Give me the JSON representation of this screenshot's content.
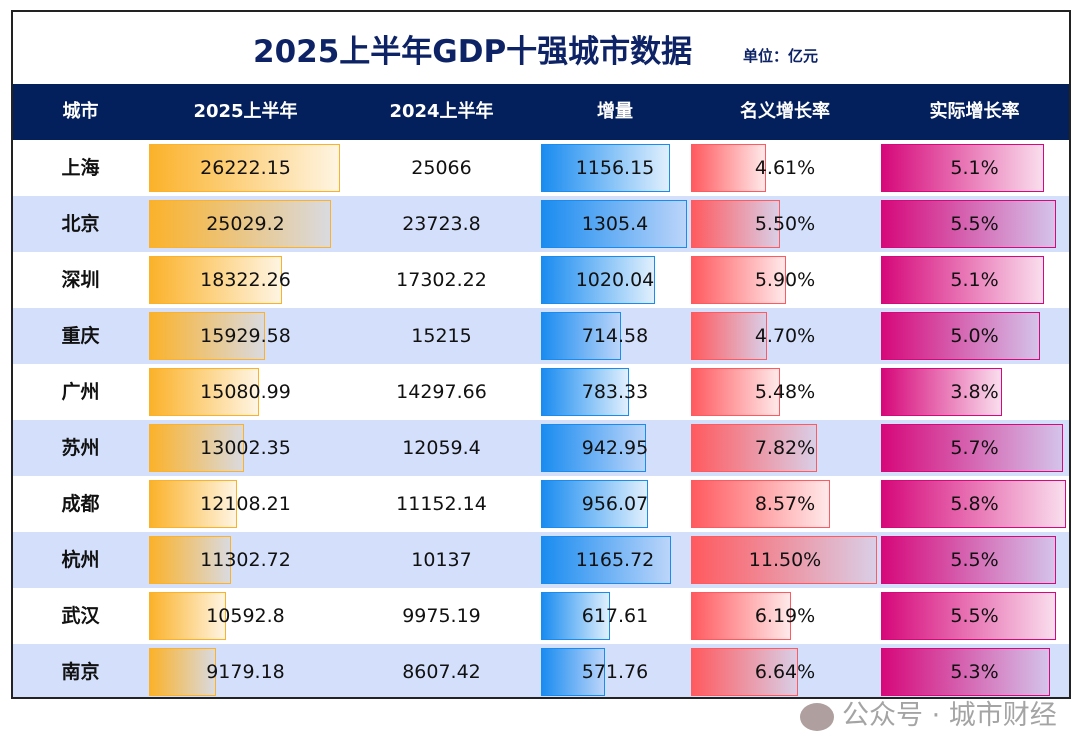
{
  "title": "2025上半年GDP十强城市数据",
  "unit": "单位：亿元",
  "watermark": "公众号 · 城市财经",
  "colors": {
    "header": "#031f5c",
    "alt_row": "#d4e0fb",
    "gdp2025": "#fbb22a",
    "increase": "#1a8cf0",
    "nominal": "#ff5a5f",
    "real": "#d6087a"
  },
  "chart_data": {
    "type": "table",
    "columns": [
      "城市",
      "2025上半年",
      "2024上半年",
      "增量",
      "名义增长率",
      "实际增长率"
    ],
    "rows": [
      {
        "city": "上海",
        "gdp2025": "26222.15",
        "gdp2024": "25066",
        "increase": "1156.15",
        "nominal": "4.61%",
        "real": "5.1%"
      },
      {
        "city": "北京",
        "gdp2025": "25029.2",
        "gdp2024": "23723.8",
        "increase": "1305.4",
        "nominal": "5.50%",
        "real": "5.5%"
      },
      {
        "city": "深圳",
        "gdp2025": "18322.26",
        "gdp2024": "17302.22",
        "increase": "1020.04",
        "nominal": "5.90%",
        "real": "5.1%"
      },
      {
        "city": "重庆",
        "gdp2025": "15929.58",
        "gdp2024": "15215",
        "increase": "714.58",
        "nominal": "4.70%",
        "real": "5.0%"
      },
      {
        "city": "广州",
        "gdp2025": "15080.99",
        "gdp2024": "14297.66",
        "increase": "783.33",
        "nominal": "5.48%",
        "real": "3.8%"
      },
      {
        "city": "苏州",
        "gdp2025": "13002.35",
        "gdp2024": "12059.4",
        "increase": "942.95",
        "nominal": "7.82%",
        "real": "5.7%"
      },
      {
        "city": "成都",
        "gdp2025": "12108.21",
        "gdp2024": "11152.14",
        "increase": "956.07",
        "nominal": "8.57%",
        "real": "5.8%"
      },
      {
        "city": "杭州",
        "gdp2025": "11302.72",
        "gdp2024": "10137",
        "increase": "1165.72",
        "nominal": "11.50%",
        "real": "5.5%"
      },
      {
        "city": "武汉",
        "gdp2025": "10592.8",
        "gdp2024": "9975.19",
        "increase": "617.61",
        "nominal": "6.19%",
        "real": "5.5%"
      },
      {
        "city": "南京",
        "gdp2025": "9179.18",
        "gdp2024": "8607.42",
        "increase": "571.76",
        "nominal": "6.64%",
        "real": "5.3%"
      }
    ]
  }
}
